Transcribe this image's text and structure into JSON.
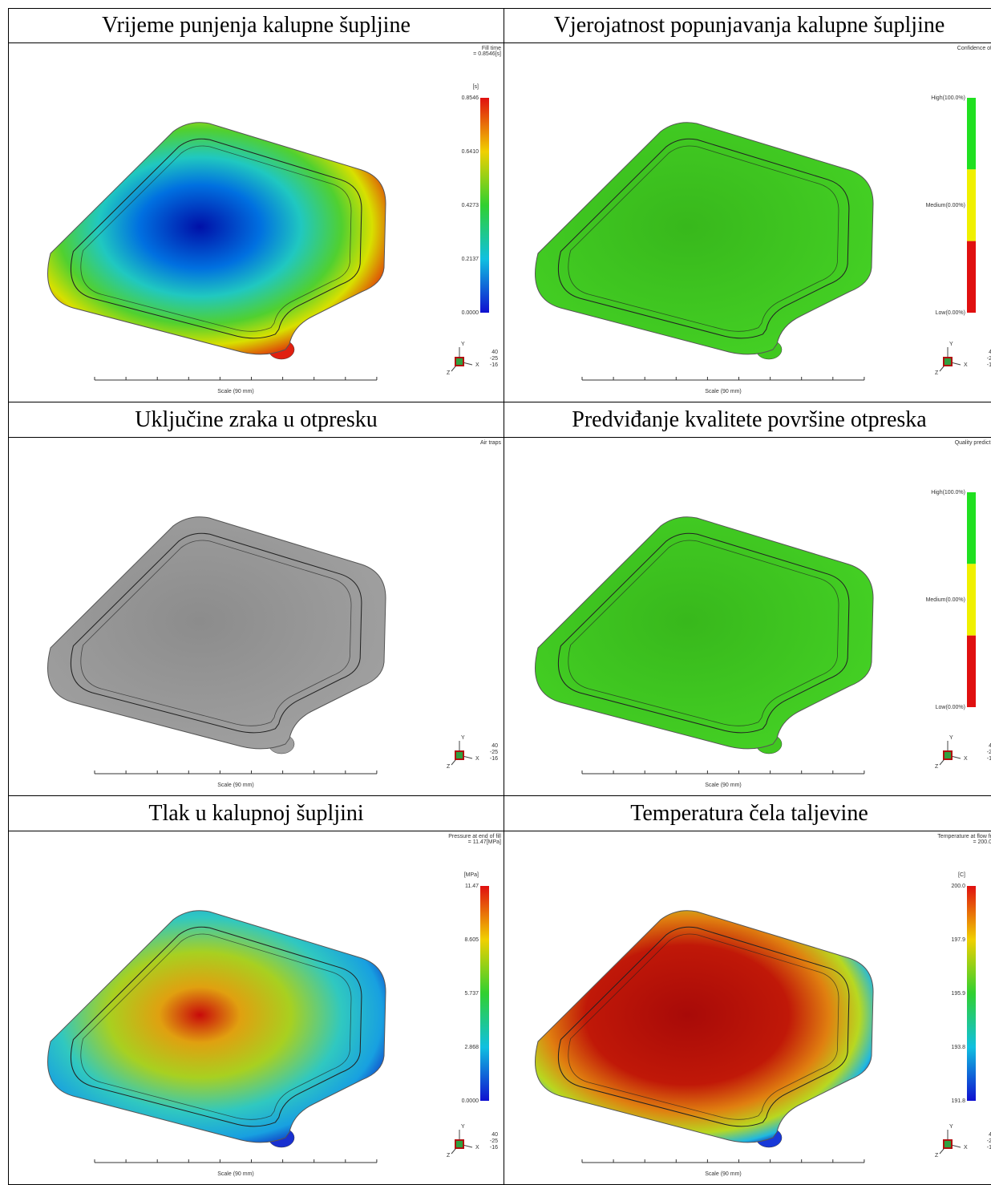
{
  "panels": [
    {
      "title": "Vrijeme punjenja kalupne šupljine",
      "note": [
        "Fill time",
        "= 0.8546[s]"
      ],
      "unit": "[s]",
      "legend": [
        "0.8546",
        "0.6410",
        "0.4273",
        "0.2137",
        "0.0000"
      ],
      "scale": "Scale (90 mm)",
      "axes": [
        "Y",
        "X",
        "Z"
      ],
      "view": [
        "40",
        "-25",
        "-16"
      ]
    },
    {
      "title": "Vjerojatnost popunjavanja kalupne šupljine",
      "note": [
        "Confidence of"
      ],
      "legend": [
        "High(100.0%)",
        "Medium(0.00%)",
        "Low(0.00%)"
      ],
      "scale": "Scale (90 mm)",
      "axes": [
        "Y",
        "X",
        "Z"
      ],
      "view": [
        "4",
        "-2",
        "-1"
      ]
    },
    {
      "title": "Uključine zraka u otpresku",
      "note": [
        "Air traps"
      ],
      "scale": "Scale (90 mm)",
      "axes": [
        "Y",
        "X",
        "Z"
      ],
      "view": [
        "40",
        "-25",
        "-16"
      ]
    },
    {
      "title": "Predviđanje kvalitete površine otpreska",
      "note": [
        "Quality predicti"
      ],
      "legend": [
        "High(100.0%)",
        "Medium(0.00%)",
        "Low(0.00%)"
      ],
      "scale": "Scale (90 mm)",
      "axes": [
        "Y",
        "X",
        "Z"
      ],
      "view": [
        "4",
        "-2",
        "-1"
      ]
    },
    {
      "title": "Tlak u kalupnoj šupljini",
      "note": [
        "Pressure at end of fill",
        "= 11.47[MPa]"
      ],
      "unit": "[MPa]",
      "legend": [
        "11.47",
        "8.605",
        "5.737",
        "2.868",
        "0.0000"
      ],
      "scale": "Scale (90 mm)",
      "axes": [
        "Y",
        "X",
        "Z"
      ],
      "view": [
        "40",
        "-25",
        "-16"
      ]
    },
    {
      "title": "Temperatura čela taljevine",
      "note": [
        "Temperature at flow fr",
        "= 200.0"
      ],
      "unit": "[C]",
      "legend": [
        "200.0",
        "197.9",
        "195.9",
        "193.8",
        "191.8"
      ],
      "scale": "Scale (90 mm)",
      "axes": [
        "Y",
        "X",
        "Z"
      ],
      "view": [
        "4",
        "-2",
        "-1"
      ]
    }
  ]
}
